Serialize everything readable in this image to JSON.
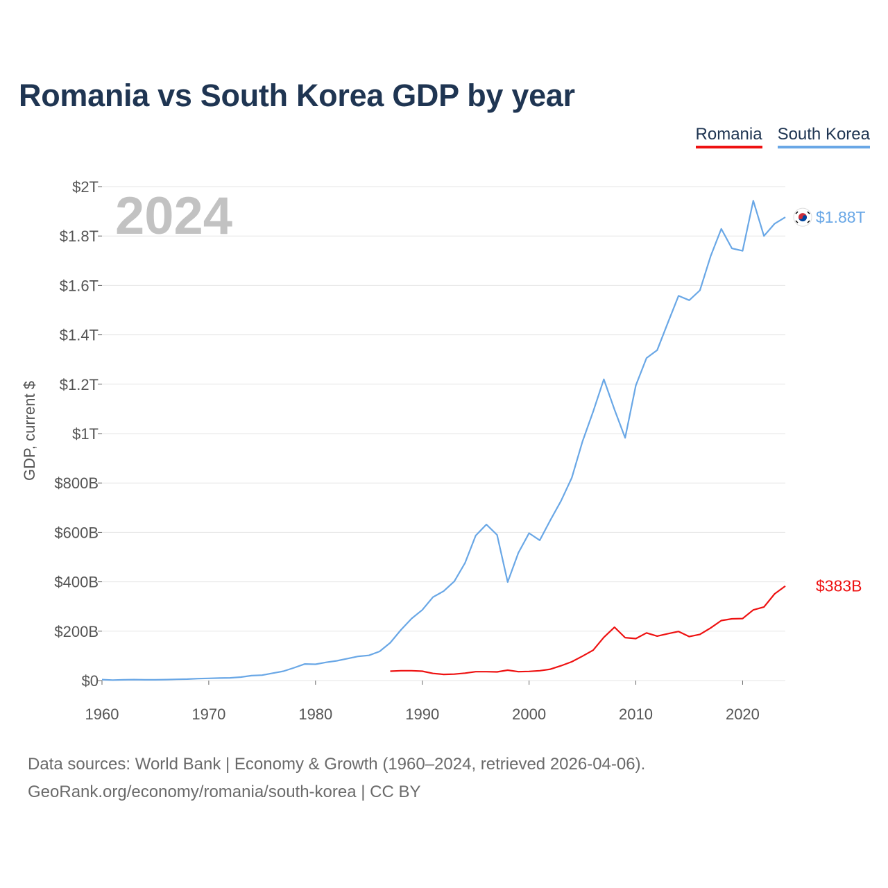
{
  "title": "Romania vs South Korea GDP by year",
  "legend": {
    "romania": "Romania",
    "south_korea": "South Korea"
  },
  "year_label": "2024",
  "source": {
    "line1": "Data sources: World Bank | Economy & Growth (1960–2024, retrieved 2026-04-06).",
    "line2": "GeoRank.org/economy/romania/south-korea | CC BY"
  },
  "colors": {
    "romania": "#ee1111",
    "south_korea": "#69a7e6",
    "grid": "#e6e6e6",
    "title": "#1f3552"
  },
  "chart_data": {
    "type": "line",
    "title": "Romania vs South Korea GDP by year",
    "ylabel": "GDP, current $",
    "xlabel": "",
    "xlim": [
      1960,
      2024
    ],
    "ylim": [
      0,
      2000
    ],
    "y_unit": "billions USD",
    "x_ticks": [
      1960,
      1970,
      1980,
      1990,
      2000,
      2010,
      2020
    ],
    "y_ticks": [
      {
        "value": 0,
        "label": "$0"
      },
      {
        "value": 200,
        "label": "$200B"
      },
      {
        "value": 400,
        "label": "$400B"
      },
      {
        "value": 600,
        "label": "$600B"
      },
      {
        "value": 800,
        "label": "$800B"
      },
      {
        "value": 1000,
        "label": "$1T"
      },
      {
        "value": 1200,
        "label": "$1.2T"
      },
      {
        "value": 1400,
        "label": "$1.4T"
      },
      {
        "value": 1600,
        "label": "$1.6T"
      },
      {
        "value": 1800,
        "label": "$1.8T"
      },
      {
        "value": 2000,
        "label": "$2T"
      }
    ],
    "grid": true,
    "legend_position": "top-right",
    "series": [
      {
        "name": "Romania",
        "color": "#ee1111",
        "end_label": "$383B",
        "x": [
          1987,
          1988,
          1989,
          1990,
          1991,
          1992,
          1993,
          1994,
          1995,
          1996,
          1997,
          1998,
          1999,
          2000,
          2001,
          2002,
          2003,
          2004,
          2005,
          2006,
          2007,
          2008,
          2009,
          2010,
          2011,
          2012,
          2013,
          2014,
          2015,
          2016,
          2017,
          2018,
          2019,
          2020,
          2021,
          2022,
          2023,
          2024
        ],
        "values": [
          38,
          40,
          40,
          38,
          29,
          25,
          26,
          30,
          36,
          36,
          35,
          42,
          36,
          37,
          40,
          46,
          60,
          76,
          99,
          123,
          175,
          216,
          174,
          170,
          193,
          180,
          190,
          199,
          178,
          187,
          213,
          243,
          250,
          251,
          286,
          298,
          351,
          383
        ]
      },
      {
        "name": "South Korea",
        "color": "#69a7e6",
        "end_label": "$1.88T",
        "x": [
          1960,
          1961,
          1962,
          1963,
          1964,
          1965,
          1966,
          1967,
          1968,
          1969,
          1970,
          1971,
          1972,
          1973,
          1974,
          1975,
          1976,
          1977,
          1978,
          1979,
          1980,
          1981,
          1982,
          1983,
          1984,
          1985,
          1986,
          1987,
          1988,
          1989,
          1990,
          1991,
          1992,
          1993,
          1994,
          1995,
          1996,
          1997,
          1998,
          1999,
          2000,
          2001,
          2002,
          2003,
          2004,
          2005,
          2006,
          2007,
          2008,
          2009,
          2010,
          2011,
          2012,
          2013,
          2014,
          2015,
          2016,
          2017,
          2018,
          2019,
          2020,
          2021,
          2022,
          2023,
          2024
        ],
        "values": [
          4,
          2,
          3,
          4,
          3,
          3,
          4,
          5,
          6,
          8,
          9,
          10,
          11,
          14,
          20,
          22,
          30,
          38,
          52,
          67,
          66,
          74,
          80,
          89,
          98,
          102,
          118,
          153,
          205,
          251,
          286,
          338,
          362,
          402,
          476,
          587,
          632,
          590,
          399,
          517,
          597,
          568,
          650,
          728,
          821,
          968,
          1089,
          1220,
          1097,
          983,
          1195,
          1306,
          1338,
          1449,
          1558,
          1540,
          1580,
          1718,
          1829,
          1750,
          1740,
          1943,
          1800,
          1850,
          1876
        ]
      }
    ]
  }
}
